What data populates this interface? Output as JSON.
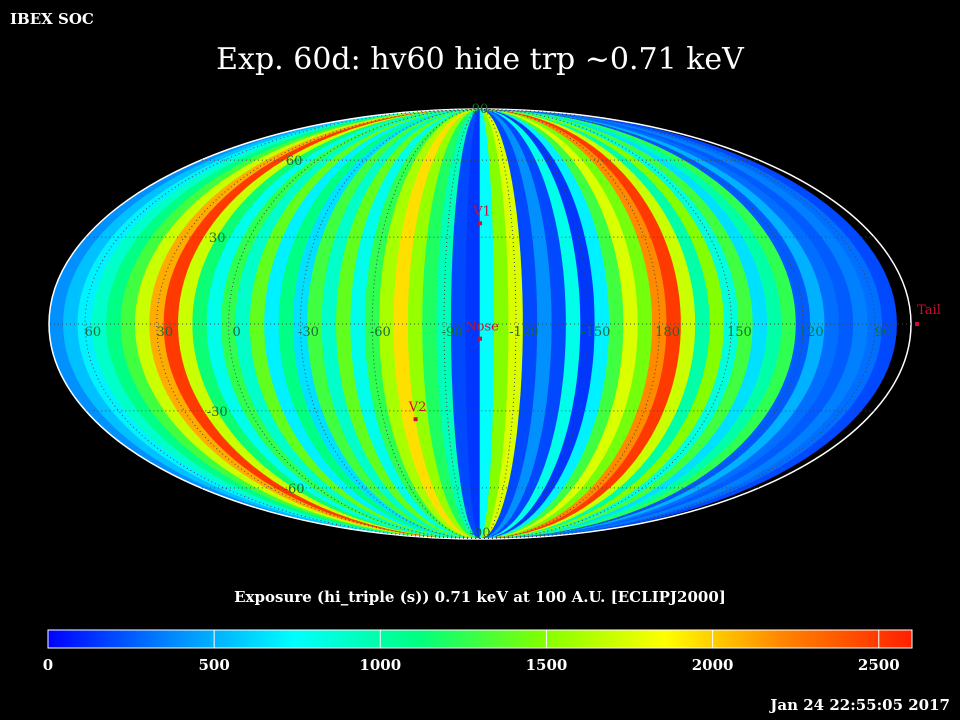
{
  "header": {
    "corner_label": "IBEX SOC",
    "title": "Exp.   60d: hv60 hide trp ~0.71 keV",
    "timestamp": "Jan 24 22:55:05 2017"
  },
  "colorbar": {
    "title": "Exposure (hi_triple (s))  0.71 keV at 100 A.U. [ECLIPJ2000]",
    "min": 0,
    "max": 2600,
    "ticks": [
      "0",
      "500",
      "1000",
      "1500",
      "2000",
      "2500"
    ],
    "tick_values": [
      0,
      500,
      1000,
      1500,
      2000,
      2500
    ],
    "colors": [
      "#0000ff",
      "#0088ff",
      "#00ffff",
      "#00ff80",
      "#80ff00",
      "#ffff00",
      "#ff8000",
      "#ff2000"
    ]
  },
  "chart_data": {
    "type": "heatmap",
    "projection": "mollweide",
    "grid": true,
    "center_longitude": -105,
    "longitude_labels": [
      "60",
      "30",
      "0",
      "-30",
      "-60",
      "-90",
      "-120",
      "-150",
      "180",
      "150",
      "120",
      "90"
    ],
    "longitude_label_values": [
      60,
      30,
      0,
      -30,
      -60,
      -90,
      -120,
      -150,
      180,
      150,
      120,
      90
    ],
    "latitude_labels": [
      "90",
      "60",
      "30",
      "-30",
      "-60",
      "-90"
    ],
    "latitude_label_values": [
      90,
      60,
      30,
      -30,
      -60,
      -90
    ],
    "longitude_bands": [
      {
        "lon_start": 75,
        "lon_end": 69,
        "value": 400
      },
      {
        "lon_start": 69,
        "lon_end": 63,
        "value": 550
      },
      {
        "lon_start": 63,
        "lon_end": 57,
        "value": 700
      },
      {
        "lon_start": 57,
        "lon_end": 51,
        "value": 900
      },
      {
        "lon_start": 51,
        "lon_end": 45,
        "value": 1100
      },
      {
        "lon_start": 45,
        "lon_end": 39,
        "value": 1300
      },
      {
        "lon_start": 39,
        "lon_end": 33,
        "value": 1700
      },
      {
        "lon_start": 33,
        "lon_end": 27,
        "value": 2100
      },
      {
        "lon_start": 27,
        "lon_end": 21,
        "value": 2500
      },
      {
        "lon_start": 21,
        "lon_end": 15,
        "value": 1700
      },
      {
        "lon_start": 15,
        "lon_end": 9,
        "value": 1150
      },
      {
        "lon_start": 9,
        "lon_end": 3,
        "value": 800
      },
      {
        "lon_start": 3,
        "lon_end": -3,
        "value": 1250
      },
      {
        "lon_start": -3,
        "lon_end": -9,
        "value": 900
      },
      {
        "lon_start": -9,
        "lon_end": -15,
        "value": 1400
      },
      {
        "lon_start": -15,
        "lon_end": -21,
        "value": 700
      },
      {
        "lon_start": -21,
        "lon_end": -27,
        "value": 1100
      },
      {
        "lon_start": -27,
        "lon_end": -33,
        "value": 650
      },
      {
        "lon_start": -33,
        "lon_end": -39,
        "value": 1300
      },
      {
        "lon_start": -39,
        "lon_end": -45,
        "value": 900
      },
      {
        "lon_start": -45,
        "lon_end": -51,
        "value": 1400
      },
      {
        "lon_start": -51,
        "lon_end": -57,
        "value": 800
      },
      {
        "lon_start": -57,
        "lon_end": -63,
        "value": 1250
      },
      {
        "lon_start": -63,
        "lon_end": -69,
        "value": 1600
      },
      {
        "lon_start": -69,
        "lon_end": -75,
        "value": 1950
      },
      {
        "lon_start": -75,
        "lon_end": -81,
        "value": 1550
      },
      {
        "lon_start": -81,
        "lon_end": -87,
        "value": 1200
      },
      {
        "lon_start": -87,
        "lon_end": -93,
        "value": 950
      },
      {
        "lon_start": -93,
        "lon_end": -99,
        "value": 200
      },
      {
        "lon_start": -99,
        "lon_end": -105,
        "value": 150
      },
      {
        "lon_start": -105,
        "lon_end": -111,
        "value": 750
      },
      {
        "lon_start": -111,
        "lon_end": -117,
        "value": 1500
      },
      {
        "lon_start": -117,
        "lon_end": -123,
        "value": 1750
      },
      {
        "lon_start": -123,
        "lon_end": -129,
        "value": 200
      },
      {
        "lon_start": -129,
        "lon_end": -135,
        "value": 400
      },
      {
        "lon_start": -135,
        "lon_end": -141,
        "value": 200
      },
      {
        "lon_start": -141,
        "lon_end": -147,
        "value": 800
      },
      {
        "lon_start": -147,
        "lon_end": -153,
        "value": 150
      },
      {
        "lon_start": -153,
        "lon_end": -159,
        "value": 700
      },
      {
        "lon_start": -159,
        "lon_end": -165,
        "value": 1300
      },
      {
        "lon_start": -165,
        "lon_end": -171,
        "value": 1750
      },
      {
        "lon_start": -171,
        "lon_end": -177,
        "value": 1450
      },
      {
        "lon_start": -177,
        "lon_end": 177,
        "value": 2200
      },
      {
        "lon_start": 177,
        "lon_end": 171,
        "value": 2500
      },
      {
        "lon_start": 171,
        "lon_end": 165,
        "value": 1700
      },
      {
        "lon_start": 165,
        "lon_end": 159,
        "value": 1000
      },
      {
        "lon_start": 159,
        "lon_end": 153,
        "value": 1500
      },
      {
        "lon_start": 153,
        "lon_end": 147,
        "value": 850
      },
      {
        "lon_start": 147,
        "lon_end": 141,
        "value": 1300
      },
      {
        "lon_start": 141,
        "lon_end": 135,
        "value": 650
      },
      {
        "lon_start": 135,
        "lon_end": 129,
        "value": 1000
      },
      {
        "lon_start": 129,
        "lon_end": 123,
        "value": 1250
      },
      {
        "lon_start": 123,
        "lon_end": 117,
        "value": 250
      },
      {
        "lon_start": 117,
        "lon_end": 111,
        "value": 500
      },
      {
        "lon_start": 111,
        "lon_end": 105,
        "value": 300
      },
      {
        "lon_start": 105,
        "lon_end": 99,
        "value": 250
      },
      {
        "lon_start": 99,
        "lon_end": 93,
        "value": 350
      },
      {
        "lon_start": 93,
        "lon_end": 87,
        "value": 300
      },
      {
        "lon_start": 87,
        "lon_end": 81,
        "value": 200
      },
      {
        "lon_start": 81,
        "lon_end": 75,
        "value": 300
      }
    ],
    "markers": [
      {
        "label": "Nose",
        "lon": -105,
        "lat": -5
      },
      {
        "label": "V1",
        "lon": -105,
        "lat": 35
      },
      {
        "label": "V2",
        "lon": -75,
        "lat": -33
      },
      {
        "label": "Tail",
        "lon": 75,
        "lat": 0
      }
    ]
  }
}
